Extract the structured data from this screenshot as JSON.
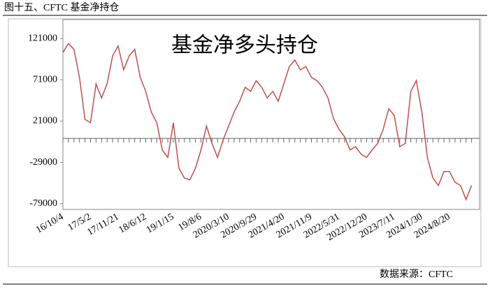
{
  "header": {
    "title": "图十五、CFTC 基金净持仓"
  },
  "chart_data": {
    "type": "line",
    "title": "基金净多头持仓",
    "categories": [
      "16/10/4",
      null,
      null,
      null,
      null,
      "17/5/2",
      null,
      null,
      null,
      null,
      "17/11/21",
      null,
      null,
      null,
      null,
      "18/6/12",
      null,
      null,
      null,
      null,
      "19/1/15",
      null,
      null,
      null,
      null,
      "19/8/6",
      null,
      null,
      null,
      null,
      "2020/3/10",
      null,
      null,
      null,
      null,
      "2020/9/29",
      null,
      null,
      null,
      null,
      "2021/4/20",
      null,
      null,
      null,
      null,
      "2021/11/9",
      null,
      null,
      null,
      null,
      "2022/5/31",
      null,
      null,
      null,
      null,
      "2022/12/20",
      null,
      null,
      null,
      null,
      "2023/7/11",
      null,
      null,
      null,
      null,
      "2024/1/30",
      null,
      null,
      null,
      null,
      "2024/8/20",
      null,
      null,
      null,
      null
    ],
    "values": [
      104000,
      115000,
      108000,
      74000,
      23000,
      19000,
      66000,
      49000,
      66000,
      100000,
      112000,
      83000,
      100000,
      108000,
      74000,
      57000,
      32000,
      19000,
      -14000,
      -23000,
      19000,
      -36000,
      -48000,
      -50000,
      -36000,
      -14000,
      15000,
      -6000,
      -23000,
      -2000,
      15000,
      32000,
      45000,
      62000,
      57000,
      70000,
      62000,
      49000,
      57000,
      45000,
      66000,
      87000,
      95000,
      83000,
      87000,
      74000,
      70000,
      62000,
      49000,
      24000,
      11000,
      2000,
      -14000,
      -10000,
      -19000,
      -23000,
      -14000,
      -6000,
      11000,
      36000,
      28000,
      -10000,
      -6000,
      57000,
      70000,
      32000,
      -23000,
      -48000,
      -57000,
      -40000,
      -40000,
      -53000,
      -57000,
      -74000,
      -57000
    ],
    "color": "#c0504d",
    "ylim": [
      -86000,
      144000
    ],
    "yticks": [
      -79000,
      -29000,
      21000,
      71000,
      121000
    ],
    "source": "数据来源：CFTC"
  }
}
